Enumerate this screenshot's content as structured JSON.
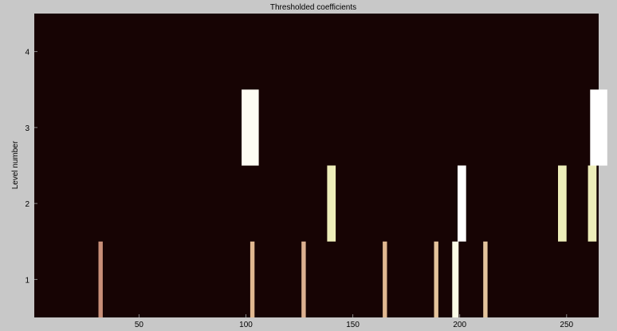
{
  "chart_data": {
    "type": "heatmap",
    "title": "Thresholded coefficients",
    "ylabel": "Level number",
    "xlabel": "",
    "xlim": [
      1,
      265
    ],
    "ylim": [
      0.5,
      4.5
    ],
    "x_ticks": [
      50,
      100,
      150,
      200,
      250
    ],
    "y_ticks": [
      1,
      2,
      3,
      4
    ],
    "background_color": "#170404",
    "bars": [
      {
        "level": 1,
        "x": 32,
        "width": 2,
        "color": "#c98f78"
      },
      {
        "level": 1,
        "x": 103,
        "width": 2,
        "color": "#e0b890"
      },
      {
        "level": 1,
        "x": 127,
        "width": 2,
        "color": "#dcb090"
      },
      {
        "level": 1,
        "x": 165,
        "width": 2,
        "color": "#e0b890"
      },
      {
        "level": 1,
        "x": 189,
        "width": 2,
        "color": "#e4c49c"
      },
      {
        "level": 1,
        "x": 198,
        "width": 3,
        "color": "#fbfbe6"
      },
      {
        "level": 1,
        "x": 212,
        "width": 2,
        "color": "#e4c49c"
      },
      {
        "level": 2,
        "x": 140,
        "width": 4,
        "color": "#eeeeba"
      },
      {
        "level": 2,
        "x": 201,
        "width": 4,
        "color": "#ffffff"
      },
      {
        "level": 2,
        "x": 248,
        "width": 4,
        "color": "#eeeeba"
      },
      {
        "level": 2,
        "x": 262,
        "width": 4,
        "color": "#eeeeba"
      },
      {
        "level": 3,
        "x": 102,
        "width": 8,
        "color": "#fdfdf4"
      },
      {
        "level": 3,
        "x": 265,
        "width": 8,
        "color": "#ffffff"
      }
    ]
  }
}
